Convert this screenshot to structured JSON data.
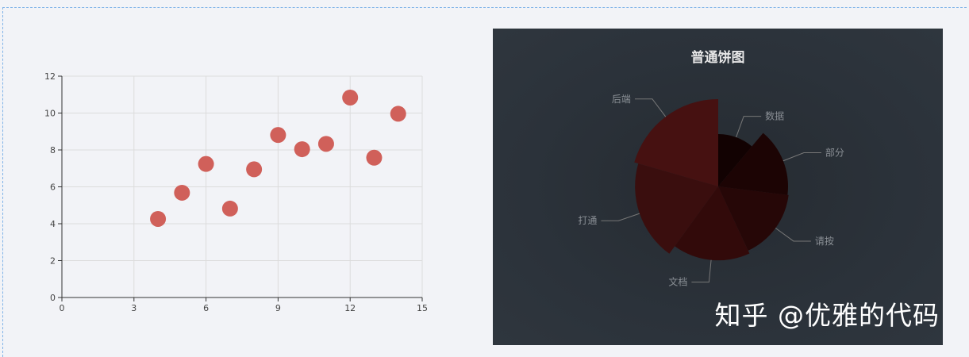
{
  "chart_data": [
    {
      "type": "scatter",
      "title": "",
      "xlabel": "",
      "ylabel": "",
      "xlim": [
        0,
        15
      ],
      "ylim": [
        0,
        12
      ],
      "xticks": [
        0,
        3,
        6,
        9,
        12,
        15
      ],
      "yticks": [
        0,
        2,
        4,
        6,
        8,
        10,
        12
      ],
      "grid": true,
      "color": "#d0605a",
      "points": [
        [
          4,
          4.26
        ],
        [
          5,
          5.68
        ],
        [
          6,
          7.24
        ],
        [
          7,
          4.82
        ],
        [
          8,
          6.95
        ],
        [
          9,
          8.81
        ],
        [
          10,
          8.04
        ],
        [
          11,
          8.33
        ],
        [
          12,
          10.84
        ],
        [
          13,
          7.58
        ],
        [
          14,
          9.96
        ]
      ]
    },
    {
      "type": "pie",
      "rose": "radius",
      "title": "普通饼图",
      "background": "#2b323a",
      "slices": [
        {
          "name": "数据",
          "value": 40,
          "color": "#120202"
        },
        {
          "name": "部分",
          "value": 57,
          "color": "#1c0404"
        },
        {
          "name": "请按",
          "value": 58,
          "color": "#260707"
        },
        {
          "name": "文档",
          "value": 61,
          "color": "#320a0a"
        },
        {
          "name": "打通",
          "value": 70,
          "color": "#3a0e0e"
        },
        {
          "name": "后端",
          "value": 74,
          "color": "#461111"
        }
      ]
    }
  ],
  "watermark": "知乎 @优雅的代码"
}
